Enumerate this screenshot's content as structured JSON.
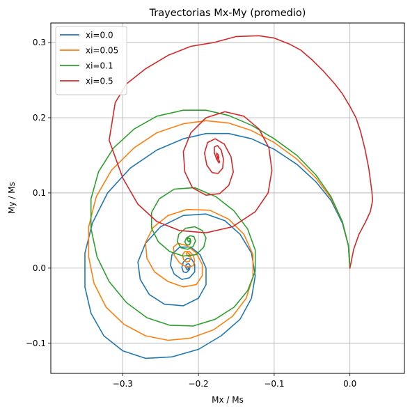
{
  "chart_data": {
    "type": "line",
    "title": "Trayectorias Mx-My (promedio)",
    "xlabel": "Mx / Ms",
    "ylabel": "My / Ms",
    "xlim": [
      -0.395,
      0.072
    ],
    "ylim": [
      -0.14,
      0.326
    ],
    "xticks": [
      -0.3,
      -0.2,
      -0.1,
      0.0
    ],
    "xtick_labels": [
      "−0.3",
      "−0.2",
      "−0.1",
      "0.0"
    ],
    "yticks": [
      -0.1,
      0.0,
      0.1,
      0.2,
      0.3
    ],
    "ytick_labels": [
      "−0.1",
      "0.0",
      "0.1",
      "0.2",
      "0.3"
    ],
    "grid": true,
    "legend_position": "top-left",
    "series": [
      {
        "name": "xi=0.0",
        "color": "#1f77b4",
        "x": [
          0.0,
          -0.002,
          -0.01,
          -0.025,
          -0.045,
          -0.07,
          -0.1,
          -0.13,
          -0.16,
          -0.19,
          -0.22,
          -0.255,
          -0.29,
          -0.32,
          -0.34,
          -0.35,
          -0.35,
          -0.342,
          -0.325,
          -0.3,
          -0.27,
          -0.235,
          -0.2,
          -0.17,
          -0.145,
          -0.13,
          -0.125,
          -0.13,
          -0.145,
          -0.165,
          -0.19,
          -0.22,
          -0.25,
          -0.27,
          -0.28,
          -0.277,
          -0.265,
          -0.245,
          -0.22,
          -0.2,
          -0.19,
          -0.19,
          -0.198,
          -0.21,
          -0.225,
          -0.235,
          -0.237,
          -0.232,
          -0.222,
          -0.212,
          -0.205,
          -0.205,
          -0.209,
          -0.215,
          -0.22,
          -0.222,
          -0.22,
          -0.216,
          -0.212,
          -0.211,
          -0.213,
          -0.216,
          -0.217,
          -0.216,
          -0.214,
          -0.213,
          -0.214,
          -0.215
        ],
        "y": [
          0.0,
          0.03,
          0.06,
          0.09,
          0.115,
          0.138,
          0.158,
          0.172,
          0.179,
          0.179,
          0.172,
          0.157,
          0.133,
          0.1,
          0.06,
          0.02,
          -0.025,
          -0.06,
          -0.09,
          -0.11,
          -0.12,
          -0.118,
          -0.108,
          -0.09,
          -0.068,
          -0.04,
          -0.01,
          0.02,
          0.045,
          0.063,
          0.072,
          0.07,
          0.055,
          0.033,
          0.008,
          -0.015,
          -0.035,
          -0.048,
          -0.05,
          -0.04,
          -0.022,
          0.0,
          0.018,
          0.028,
          0.028,
          0.018,
          0.004,
          -0.008,
          -0.015,
          -0.013,
          -0.005,
          0.005,
          0.012,
          0.013,
          0.008,
          0.001,
          -0.005,
          -0.006,
          -0.002,
          0.003,
          0.006,
          0.005,
          0.002,
          -0.001,
          -0.002,
          0.0,
          0.002,
          0.001
        ]
      },
      {
        "name": "xi=0.05",
        "color": "#ff7f0e",
        "x": [
          0.0,
          -0.002,
          -0.01,
          -0.025,
          -0.045,
          -0.07,
          -0.1,
          -0.13,
          -0.16,
          -0.19,
          -0.22,
          -0.255,
          -0.285,
          -0.315,
          -0.335,
          -0.345,
          -0.345,
          -0.338,
          -0.322,
          -0.298,
          -0.27,
          -0.24,
          -0.21,
          -0.18,
          -0.155,
          -0.137,
          -0.128,
          -0.128,
          -0.14,
          -0.16,
          -0.185,
          -0.215,
          -0.24,
          -0.26,
          -0.27,
          -0.268,
          -0.258,
          -0.24,
          -0.22,
          -0.203,
          -0.195,
          -0.195,
          -0.203,
          -0.215,
          -0.227,
          -0.233,
          -0.232,
          -0.225,
          -0.215,
          -0.207,
          -0.205,
          -0.207,
          -0.212,
          -0.218,
          -0.221,
          -0.22,
          -0.216,
          -0.212,
          -0.21,
          -0.212,
          -0.215,
          -0.216,
          -0.214,
          -0.212,
          -0.212,
          -0.213
        ],
        "y": [
          0.0,
          0.03,
          0.062,
          0.093,
          0.12,
          0.145,
          0.167,
          0.183,
          0.193,
          0.196,
          0.192,
          0.18,
          0.16,
          0.13,
          0.095,
          0.055,
          0.015,
          -0.02,
          -0.052,
          -0.075,
          -0.09,
          -0.096,
          -0.093,
          -0.082,
          -0.064,
          -0.04,
          -0.012,
          0.018,
          0.045,
          0.065,
          0.077,
          0.078,
          0.07,
          0.054,
          0.034,
          0.013,
          -0.005,
          -0.018,
          -0.025,
          -0.022,
          -0.01,
          0.005,
          0.02,
          0.03,
          0.033,
          0.028,
          0.017,
          0.007,
          0.001,
          0.003,
          0.01,
          0.017,
          0.022,
          0.022,
          0.018,
          0.012,
          0.008,
          0.009,
          0.014,
          0.019,
          0.021,
          0.019,
          0.016,
          0.015,
          0.018,
          0.019
        ]
      },
      {
        "name": "xi=0.1",
        "color": "#2ca02c",
        "x": [
          0.0,
          -0.002,
          -0.01,
          -0.025,
          -0.045,
          -0.07,
          -0.1,
          -0.13,
          -0.16,
          -0.19,
          -0.22,
          -0.255,
          -0.285,
          -0.312,
          -0.332,
          -0.342,
          -0.342,
          -0.334,
          -0.318,
          -0.295,
          -0.268,
          -0.238,
          -0.207,
          -0.178,
          -0.153,
          -0.135,
          -0.125,
          -0.125,
          -0.135,
          -0.153,
          -0.177,
          -0.205,
          -0.232,
          -0.252,
          -0.262,
          -0.262,
          -0.253,
          -0.238,
          -0.22,
          -0.203,
          -0.193,
          -0.19,
          -0.195,
          -0.205,
          -0.217,
          -0.226,
          -0.228,
          -0.223,
          -0.214,
          -0.207,
          -0.204,
          -0.206,
          -0.211,
          -0.216,
          -0.218,
          -0.216,
          -0.212,
          -0.21,
          -0.211,
          -0.214,
          -0.215,
          -0.213,
          -0.211,
          -0.212
        ],
        "y": [
          0.0,
          0.03,
          0.062,
          0.095,
          0.124,
          0.15,
          0.172,
          0.19,
          0.203,
          0.21,
          0.21,
          0.202,
          0.185,
          0.16,
          0.128,
          0.092,
          0.053,
          0.015,
          -0.018,
          -0.046,
          -0.066,
          -0.076,
          -0.077,
          -0.068,
          -0.052,
          -0.03,
          -0.004,
          0.024,
          0.052,
          0.076,
          0.095,
          0.107,
          0.105,
          0.092,
          0.074,
          0.053,
          0.035,
          0.022,
          0.016,
          0.018,
          0.028,
          0.04,
          0.05,
          0.055,
          0.053,
          0.045,
          0.035,
          0.027,
          0.025,
          0.029,
          0.036,
          0.042,
          0.043,
          0.04,
          0.035,
          0.031,
          0.031,
          0.035,
          0.039,
          0.04,
          0.038,
          0.035,
          0.035,
          0.037
        ]
      },
      {
        "name": "xi=0.5",
        "color": "#d62728",
        "x": [
          0.0,
          0.005,
          0.012,
          0.02,
          0.027,
          0.03,
          0.029,
          0.025,
          0.02,
          0.014,
          0.008,
          0.0,
          -0.01,
          -0.02,
          -0.035,
          -0.05,
          -0.065,
          -0.08,
          -0.1,
          -0.12,
          -0.15,
          -0.18,
          -0.21,
          -0.24,
          -0.27,
          -0.295,
          -0.31,
          -0.318,
          -0.3,
          -0.28,
          -0.255,
          -0.225,
          -0.19,
          -0.155,
          -0.125,
          -0.108,
          -0.103,
          -0.107,
          -0.12,
          -0.14,
          -0.165,
          -0.19,
          -0.21,
          -0.22,
          -0.218,
          -0.208,
          -0.19,
          -0.172,
          -0.16,
          -0.154,
          -0.157,
          -0.166,
          -0.178,
          -0.188,
          -0.192,
          -0.189,
          -0.182,
          -0.174,
          -0.168,
          -0.167,
          -0.17,
          -0.175,
          -0.179,
          -0.179,
          -0.176,
          -0.173,
          -0.172,
          -0.174,
          -0.176,
          -0.176,
          -0.174,
          -0.173,
          -0.174,
          -0.175,
          -0.175,
          -0.174
        ],
        "y": [
          0.0,
          0.025,
          0.045,
          0.06,
          0.075,
          0.09,
          0.102,
          0.132,
          0.158,
          0.182,
          0.2,
          0.215,
          0.232,
          0.245,
          0.262,
          0.277,
          0.29,
          0.298,
          0.306,
          0.309,
          0.308,
          0.3,
          0.295,
          0.283,
          0.265,
          0.245,
          0.22,
          0.17,
          0.12,
          0.085,
          0.062,
          0.05,
          0.047,
          0.055,
          0.075,
          0.1,
          0.13,
          0.16,
          0.185,
          0.202,
          0.208,
          0.2,
          0.18,
          0.155,
          0.128,
          0.107,
          0.097,
          0.099,
          0.11,
          0.128,
          0.148,
          0.165,
          0.172,
          0.167,
          0.153,
          0.137,
          0.127,
          0.126,
          0.133,
          0.145,
          0.157,
          0.163,
          0.161,
          0.153,
          0.145,
          0.14,
          0.141,
          0.146,
          0.151,
          0.153,
          0.151,
          0.147,
          0.145,
          0.146,
          0.148,
          0.147
        ]
      }
    ]
  }
}
